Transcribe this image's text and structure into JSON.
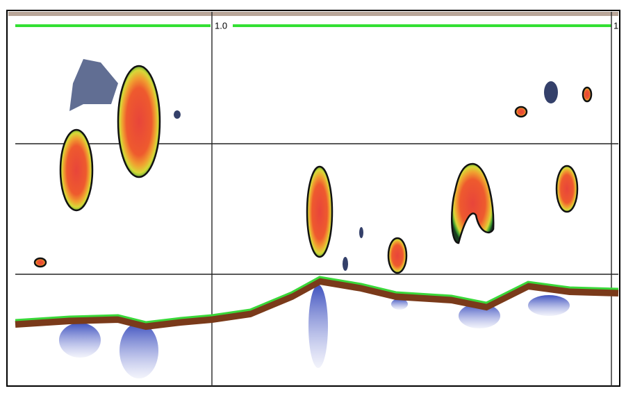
{
  "markers": [
    {
      "label": "1.0"
    },
    {
      "label": "1"
    }
  ]
}
